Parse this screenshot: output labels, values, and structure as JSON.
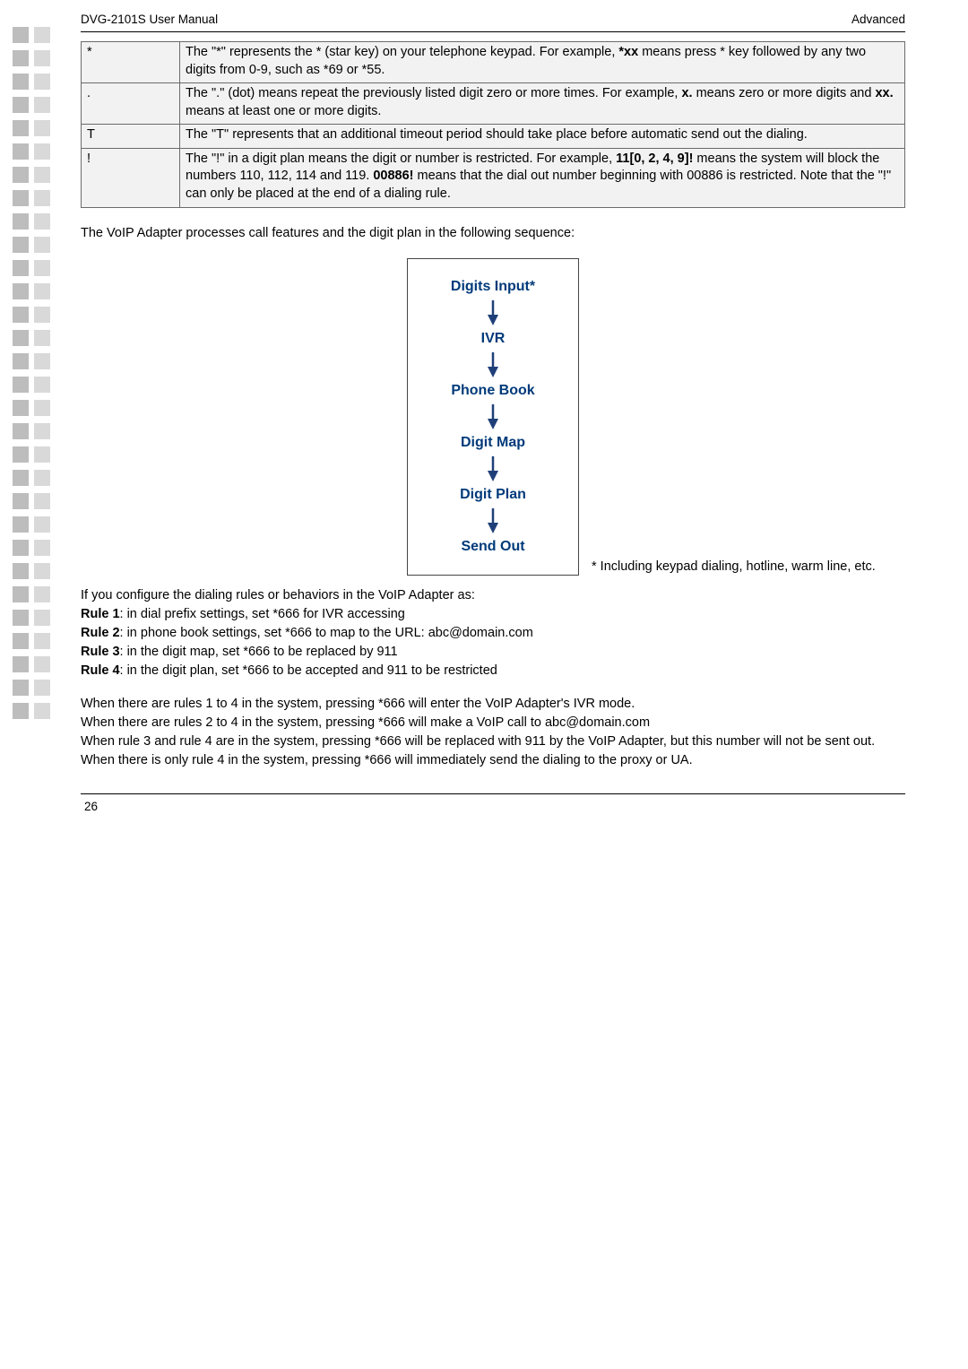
{
  "header": {
    "left": "DVG-2101S User Manual",
    "right": "Advanced"
  },
  "table": {
    "rows": [
      {
        "char": "*",
        "meaning_parts": [
          "The \"*\" represents the * (star key) on your telephone keypad. For example, ",
          {
            "b": true,
            "t": "*xx"
          },
          " means press * key followed by any two digits from 0-9, such as *69 or *55."
        ]
      },
      {
        "char": ".",
        "meaning_parts": [
          "The \".\" (dot) means repeat the previously listed digit zero or more times. For example, ",
          {
            "b": true,
            "t": "x."
          },
          " means zero or more digits and ",
          {
            "b": true,
            "t": "xx."
          },
          " means at least one or more digits."
        ]
      },
      {
        "char": "T",
        "meaning_parts": [
          "The \"T\" represents that an additional timeout period should take place before automatic send out the dialing."
        ]
      },
      {
        "char": "!",
        "meaning_parts": [
          "The \"!\" in a digit plan means the digit or number is restricted. For example, ",
          {
            "b": true,
            "t": "11[0, 2, 4, 9]!"
          },
          " means the system will block the numbers 110, 112, 114 and 119. ",
          {
            "b": true,
            "t": "00886!"
          },
          " means that the dial out number beginning with 00886 is restricted. Note that the \"!\" can only be placed at the end of a dialing rule."
        ]
      }
    ]
  },
  "intro_para": "The VoIP Adapter processes call features and the digit plan in the following sequence:",
  "flow": {
    "nodes": [
      "Digits Input*",
      "IVR",
      "Phone Book",
      "Digit Map",
      "Digit Plan",
      "Send Out"
    ],
    "arrow_color": "#1f3f78",
    "node_color": "#003a7a",
    "node_fontsize": 16,
    "box_border": "#444444",
    "background": "#ffffff"
  },
  "caption": "* Including keypad dialing, hotline, warm line, etc.",
  "rules": {
    "intro": "If you configure the dialing rules or behaviors in the VoIP Adapter as:",
    "items": [
      {
        "label": "Rule 1",
        "text": ": in dial prefix settings, set *666 for IVR accessing"
      },
      {
        "label": "Rule 2",
        "text": ": in phone book settings, set *666 to map to the URL: abc@domain.com"
      },
      {
        "label": "Rule 3",
        "text": ": in the digit map, set *666 to be replaced by 911"
      },
      {
        "label": "Rule 4",
        "text": ": in the digit plan, set *666 to be accepted and 911 to be restricted"
      }
    ]
  },
  "explain": [
    "When there are rules 1 to 4 in the system, pressing *666 will enter the VoIP Adapter's IVR mode.",
    "When there are rules 2 to 4 in the system, pressing *666 will make a VoIP call to abc@domain.com",
    "When rule 3 and rule 4 are in the system, pressing *666 will be replaced with 911 by the VoIP Adapter, but this number will not be sent out.",
    "When there is only rule 4 in the system, pressing *666 will immediately send the dialing to the proxy or UA."
  ],
  "page_no": "26",
  "decor": {
    "pair_count": 30,
    "dark": "#bdbdbd",
    "light": "#d9d9d9"
  }
}
